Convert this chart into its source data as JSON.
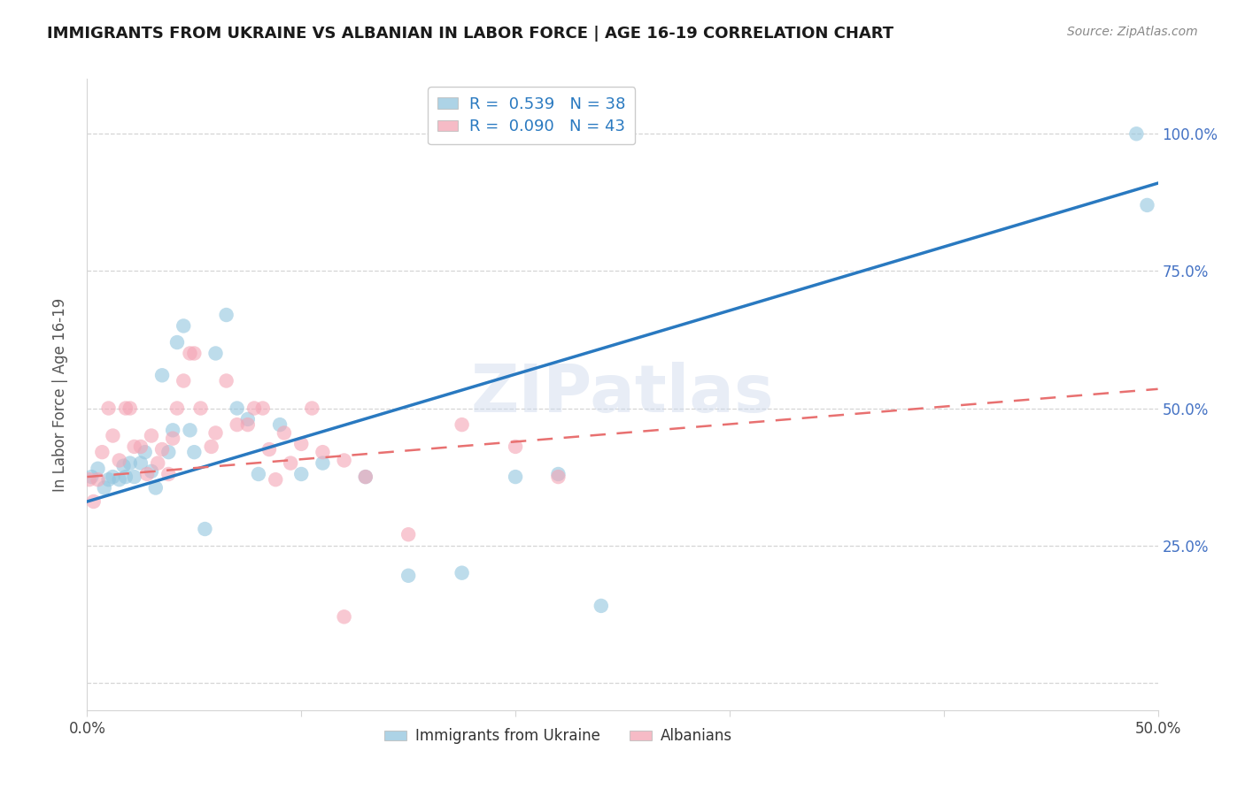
{
  "title": "IMMIGRANTS FROM UKRAINE VS ALBANIAN IN LABOR FORCE | AGE 16-19 CORRELATION CHART",
  "source": "Source: ZipAtlas.com",
  "ylabel": "In Labor Force | Age 16-19",
  "xlim": [
    0.0,
    0.5
  ],
  "ylim": [
    -0.05,
    1.1
  ],
  "ytick_vals": [
    0.0,
    0.25,
    0.5,
    0.75,
    1.0
  ],
  "ytick_labels_right": [
    "",
    "25.0%",
    "50.0%",
    "75.0%",
    "100.0%"
  ],
  "xtick_vals": [
    0.0,
    0.1,
    0.2,
    0.3,
    0.4,
    0.5
  ],
  "xtick_labels": [
    "0.0%",
    "",
    "",
    "",
    "",
    "50.0%"
  ],
  "ukraine_color": "#92c5de",
  "albanian_color": "#f4a4b4",
  "ukraine_line_color": "#2979c0",
  "albanian_line_color": "#e87070",
  "ukraine_R": 0.539,
  "ukraine_N": 38,
  "albanian_R": 0.09,
  "albanian_N": 43,
  "ukraine_line_x0": 0.0,
  "ukraine_line_y0": 0.33,
  "ukraine_line_x1": 0.5,
  "ukraine_line_y1": 0.91,
  "albanian_line_x0": 0.0,
  "albanian_line_y0": 0.375,
  "albanian_line_x1": 0.5,
  "albanian_line_y1": 0.535,
  "ukraine_x": [
    0.002,
    0.005,
    0.008,
    0.01,
    0.012,
    0.015,
    0.017,
    0.018,
    0.02,
    0.022,
    0.025,
    0.027,
    0.03,
    0.032,
    0.035,
    0.038,
    0.04,
    0.042,
    0.045,
    0.048,
    0.05,
    0.055,
    0.06,
    0.065,
    0.07,
    0.075,
    0.08,
    0.09,
    0.1,
    0.11,
    0.13,
    0.15,
    0.175,
    0.2,
    0.22,
    0.24,
    0.49,
    0.495
  ],
  "ukraine_y": [
    0.375,
    0.39,
    0.355,
    0.37,
    0.375,
    0.37,
    0.395,
    0.375,
    0.4,
    0.375,
    0.4,
    0.42,
    0.385,
    0.355,
    0.56,
    0.42,
    0.46,
    0.62,
    0.65,
    0.46,
    0.42,
    0.28,
    0.6,
    0.67,
    0.5,
    0.48,
    0.38,
    0.47,
    0.38,
    0.4,
    0.375,
    0.195,
    0.2,
    0.375,
    0.38,
    0.14,
    1.0,
    0.87
  ],
  "albanian_x": [
    0.001,
    0.003,
    0.005,
    0.007,
    0.01,
    0.012,
    0.015,
    0.018,
    0.02,
    0.022,
    0.025,
    0.028,
    0.03,
    0.033,
    0.035,
    0.038,
    0.04,
    0.042,
    0.045,
    0.048,
    0.05,
    0.053,
    0.058,
    0.06,
    0.065,
    0.07,
    0.075,
    0.078,
    0.082,
    0.085,
    0.088,
    0.092,
    0.095,
    0.1,
    0.105,
    0.11,
    0.12,
    0.13,
    0.15,
    0.175,
    0.2,
    0.22,
    0.12
  ],
  "albanian_y": [
    0.37,
    0.33,
    0.37,
    0.42,
    0.5,
    0.45,
    0.405,
    0.5,
    0.5,
    0.43,
    0.43,
    0.38,
    0.45,
    0.4,
    0.425,
    0.38,
    0.445,
    0.5,
    0.55,
    0.6,
    0.6,
    0.5,
    0.43,
    0.455,
    0.55,
    0.47,
    0.47,
    0.5,
    0.5,
    0.425,
    0.37,
    0.455,
    0.4,
    0.435,
    0.5,
    0.42,
    0.405,
    0.375,
    0.27,
    0.47,
    0.43,
    0.375,
    0.12
  ],
  "watermark": "ZIPatlas",
  "right_tick_color": "#4472c4",
  "grid_color": "#d5d5d5",
  "title_color": "#1a1a1a",
  "axis_label_color": "#555555",
  "legend_border_color": "#cccccc"
}
